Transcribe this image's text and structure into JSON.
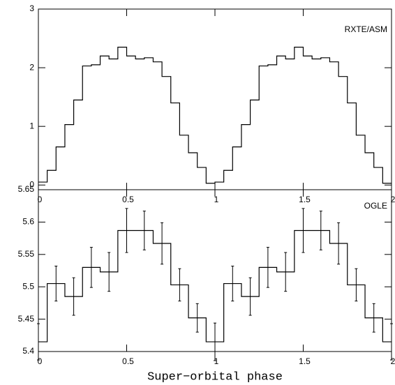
{
  "chart_data": [
    {
      "type": "step",
      "annotation": "RXTE/ASM",
      "color": "#000000",
      "x": [
        0.025,
        0.075,
        0.125,
        0.175,
        0.225,
        0.275,
        0.325,
        0.375,
        0.425,
        0.475,
        0.525,
        0.575,
        0.625,
        0.675,
        0.725,
        0.775,
        0.825,
        0.875,
        0.925,
        0.975,
        1.025,
        1.075,
        1.125,
        1.175,
        1.225,
        1.275,
        1.325,
        1.375,
        1.425,
        1.475,
        1.525,
        1.575,
        1.625,
        1.675,
        1.725,
        1.775,
        1.825,
        1.875,
        1.925,
        1.975
      ],
      "values": [
        0.05,
        0.25,
        0.65,
        1.03,
        1.45,
        2.03,
        2.05,
        2.2,
        2.15,
        2.35,
        2.2,
        2.15,
        2.17,
        2.1,
        1.85,
        1.4,
        0.85,
        0.55,
        0.3,
        0.03,
        0.05,
        0.25,
        0.65,
        1.03,
        1.45,
        2.03,
        2.05,
        2.2,
        2.15,
        2.35,
        2.2,
        2.15,
        2.17,
        2.1,
        1.85,
        1.4,
        0.85,
        0.55,
        0.3,
        0.03
      ],
      "xlim": [
        0,
        2
      ],
      "xticks": [
        0,
        0.5,
        1,
        1.5,
        2
      ],
      "ylim": [
        -0.08,
        3
      ],
      "yticks": [
        0,
        1,
        2,
        3
      ]
    },
    {
      "type": "step-errorbar",
      "annotation": "OGLE",
      "color": "#000000",
      "xlabel": "Super−orbital phase",
      "x": [
        0,
        0.1,
        0.2,
        0.3,
        0.4,
        0.5,
        0.6,
        0.7,
        0.8,
        0.9,
        1.0,
        1.1,
        1.2,
        1.3,
        1.4,
        1.5,
        1.6,
        1.7,
        1.8,
        1.9,
        2.0
      ],
      "values": [
        5.415,
        5.505,
        5.485,
        5.53,
        5.523,
        5.587,
        5.587,
        5.567,
        5.503,
        5.452,
        5.415,
        5.505,
        5.485,
        5.53,
        5.523,
        5.587,
        5.587,
        5.567,
        5.503,
        5.452,
        5.415
      ],
      "errors": [
        0.028,
        0.027,
        0.029,
        0.031,
        0.03,
        0.034,
        0.03,
        0.032,
        0.025,
        0.022,
        0.029,
        0.027,
        0.029,
        0.031,
        0.03,
        0.034,
        0.03,
        0.032,
        0.025,
        0.022,
        0.028
      ],
      "xlim": [
        0,
        2
      ],
      "xticks": [
        0,
        0.5,
        1,
        1.5,
        2
      ],
      "ylim": [
        5.4,
        5.65
      ],
      "yticks": [
        5.4,
        5.45,
        5.5,
        5.55,
        5.6,
        5.65
      ]
    }
  ]
}
